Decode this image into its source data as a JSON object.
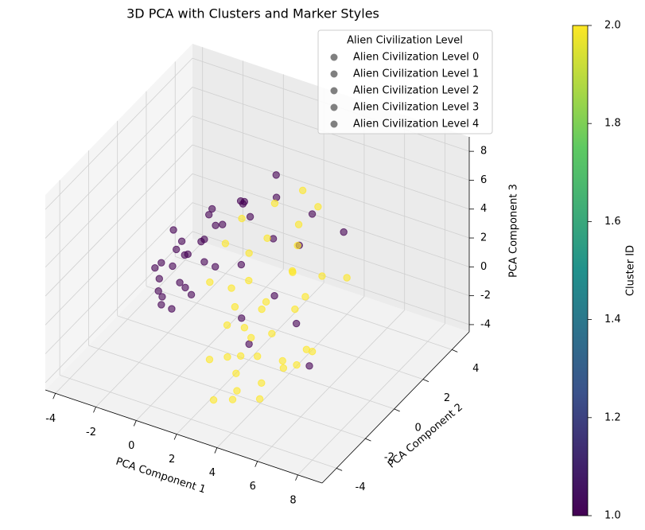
{
  "chart_data": {
    "type": "scatter3d",
    "title": "3D PCA with Clusters and Marker Styles",
    "xlabel": "PCA Component 1",
    "ylabel": "PCA Component 2",
    "zlabel": "PCA Component 3",
    "xlim": [
      -4.5,
      9.2
    ],
    "ylim": [
      -5,
      5.2
    ],
    "zlim": [
      -4.5,
      9
    ],
    "xticks": [
      -4,
      -2,
      0,
      2,
      4,
      6,
      8
    ],
    "yticks": [
      -4,
      -2,
      0,
      2,
      4
    ],
    "zticks": [
      -4,
      -2,
      0,
      2,
      4,
      6,
      8
    ],
    "grid": true,
    "points": {
      "x": [
        -3.2,
        -2.8,
        -3.5,
        -2.5,
        -3.9,
        -3.0,
        -2.2,
        -3.6,
        -2.7,
        -3.3,
        -1.8,
        -2.0,
        -3.8,
        -2.9,
        -1.5,
        -1.0,
        -0.5,
        0.2,
        0.8,
        1.5,
        2.2,
        3.0,
        -1.2,
        -2.4,
        -3.1,
        -0.8,
        0.5,
        1.0,
        2.5,
        3.5,
        4.2,
        5.0,
        -3.4,
        -2.6,
        -1.7,
        -4.0,
        -2.1,
        0.0,
        1.8,
        -1.4,
        2.5,
        3.0,
        3.5,
        2.0,
        4.0,
        1.5,
        3.8,
        2.8,
        4.5,
        1.0,
        3.2,
        2.2,
        5.0,
        0.5,
        3.6,
        2.6,
        4.2,
        1.8,
        5.5,
        3.4,
        2.4,
        4.8,
        1.2,
        3.0,
        6.0,
        2.0,
        4.0,
        3.2,
        5.2,
        0.8,
        2.9,
        4.4,
        1.6,
        3.7,
        6.5,
        2.3,
        4.6,
        3.1,
        0.2,
        5.8
      ],
      "y": [
        2.0,
        2.5,
        1.5,
        3.0,
        2.2,
        1.0,
        2.8,
        3.2,
        1.8,
        2.4,
        3.5,
        1.2,
        2.9,
        0.8,
        2.6,
        3.8,
        3.2,
        2.0,
        3.6,
        2.4,
        1.5,
        3.0,
        0.5,
        3.4,
        2.7,
        1.6,
        4.0,
        0.9,
        2.8,
        1.2,
        3.5,
        0.0,
        1.3,
        3.9,
        2.1,
        1.9,
        0.4,
        2.9,
        0.3,
        4.2,
        -1.0,
        -0.5,
        -1.5,
        0.0,
        -1.2,
        -0.8,
        0.5,
        -2.0,
        -0.3,
        0.2,
        -2.5,
        1.0,
        -1.8,
        -0.6,
        0.8,
        -1.4,
        -2.2,
        0.3,
        -0.9,
        1.5,
        -3.0,
        0.0,
        -1.6,
        -0.2,
        -1.2,
        1.8,
        2.0,
        -2.8,
        0.6,
        1.2,
        -1.1,
        -2.6,
        -0.4,
        1.0,
        0.5,
        -1.9,
        -1.3,
        2.2,
        0.9,
        -2.0
      ],
      "z": [
        -2.5,
        -2.0,
        -3.0,
        -1.5,
        -2.8,
        -3.5,
        -1.0,
        -2.2,
        -3.2,
        -1.8,
        -0.5,
        -2.6,
        -1.2,
        -3.8,
        0.5,
        1.0,
        2.0,
        -0.8,
        2.5,
        1.2,
        -1.5,
        3.0,
        -2.0,
        0.0,
        -2.4,
        -1.0,
        3.5,
        -3.0,
        0.8,
        -2.5,
        1.8,
        -3.5,
        -3.6,
        -0.2,
        -1.6,
        -2.9,
        -3.3,
        1.5,
        -3.8,
        0.6,
        -1.0,
        0.0,
        -2.0,
        1.0,
        -0.5,
        -1.5,
        2.0,
        -3.0,
        0.5,
        -0.2,
        -3.5,
        3.0,
        -1.8,
        0.8,
        1.5,
        -2.5,
        -2.8,
        2.5,
        -1.2,
        4.0,
        -4.0,
        1.2,
        -3.2,
        0.2,
        -0.8,
        4.5,
        5.0,
        -3.8,
        2.2,
        3.5,
        -1.4,
        -3.4,
        -0.6,
        3.2,
        2.8,
        -2.2,
        -2.0,
        5.5,
        1.8,
        -1.0
      ],
      "cluster": [
        1,
        1,
        1,
        1,
        1,
        1,
        1,
        1,
        1,
        1,
        1,
        1,
        1,
        1,
        1,
        1,
        1,
        1,
        1,
        1,
        1,
        1,
        1,
        1,
        1,
        1,
        1,
        1,
        1,
        1,
        1,
        1,
        1,
        1,
        1,
        1,
        1,
        1,
        1,
        1,
        2,
        2,
        2,
        2,
        2,
        2,
        2,
        2,
        2,
        2,
        2,
        2,
        2,
        2,
        2,
        2,
        2,
        2,
        2,
        2,
        2,
        2,
        2,
        2,
        2,
        2,
        2,
        2,
        2,
        2,
        2,
        2,
        2,
        2,
        2,
        2,
        2,
        2,
        2,
        2
      ]
    },
    "colorbar": {
      "label": "Cluster ID",
      "colormap": "viridis",
      "lim": [
        1,
        2
      ],
      "ticks": [
        {
          "value": 1,
          "label": "1.0"
        },
        {
          "value": 1.2,
          "label": "1.2"
        },
        {
          "value": 1.4,
          "label": "1.4"
        },
        {
          "value": 1.6,
          "label": "1.6"
        },
        {
          "value": 1.8,
          "label": "1.8"
        },
        {
          "value": 2,
          "label": "2.0"
        }
      ]
    },
    "legend": {
      "title": "Alien Civilization Level",
      "color": "gray",
      "entries": [
        "Alien Civilization Level 0",
        "Alien Civilization Level 1",
        "Alien Civilization Level 2",
        "Alien Civilization Level 3",
        "Alien Civilization Level 4"
      ]
    }
  }
}
